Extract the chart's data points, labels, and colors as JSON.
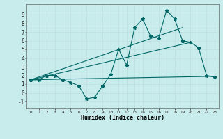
{
  "xlabel": "Humidex (Indice chaleur)",
  "bg_color": "#c8ecec",
  "grid_color": "#c0dede",
  "line_color": "#006666",
  "xlim": [
    -0.5,
    23.5
  ],
  "ylim": [
    -1.8,
    10.2
  ],
  "yticks": [
    -1,
    0,
    1,
    2,
    3,
    4,
    5,
    6,
    7,
    8,
    9
  ],
  "xticks": [
    0,
    1,
    2,
    3,
    4,
    5,
    6,
    7,
    8,
    9,
    10,
    11,
    12,
    13,
    14,
    15,
    16,
    17,
    18,
    19,
    20,
    21,
    22,
    23
  ],
  "series1_x": [
    0,
    1,
    2,
    3,
    4,
    5,
    6,
    7,
    8,
    9,
    10,
    11,
    12,
    13,
    14,
    15,
    16,
    17,
    18,
    19,
    20,
    21,
    22,
    23
  ],
  "series1_y": [
    1.5,
    1.5,
    2.0,
    2.0,
    1.5,
    1.2,
    0.8,
    -0.7,
    -0.5,
    0.8,
    2.1,
    5.0,
    3.2,
    7.5,
    8.5,
    6.5,
    6.3,
    9.5,
    8.5,
    6.0,
    5.8,
    5.2,
    2.0,
    1.8
  ],
  "series2_x": [
    0,
    23
  ],
  "series2_y": [
    1.5,
    1.9
  ],
  "series3_x": [
    0,
    20
  ],
  "series3_y": [
    1.5,
    5.8
  ],
  "series4_x": [
    0,
    19
  ],
  "series4_y": [
    1.5,
    7.5
  ]
}
